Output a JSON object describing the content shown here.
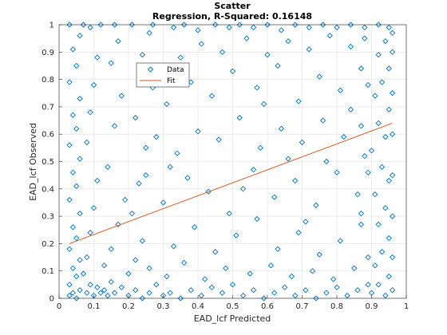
{
  "chart_data": {
    "type": "scatter",
    "title": "Scatter",
    "subtitle": "Regression, R-Squared: 0.16148",
    "xlabel": "EAD_lcf Predicted",
    "ylabel": "EAD_lcf Observed",
    "xlim": [
      0,
      1
    ],
    "ylim": [
      0,
      1
    ],
    "xticks": [
      "0",
      "0.1",
      "0.2",
      "0.3",
      "0.4",
      "0.5",
      "0.6",
      "0.7",
      "0.8",
      "0.9",
      "1"
    ],
    "yticks": [
      "0",
      "0.1",
      "0.2",
      "0.3",
      "0.4",
      "0.5",
      "0.6",
      "0.7",
      "0.8",
      "0.9",
      "1"
    ],
    "grid": true,
    "legend_position": "upper-left-inside",
    "colors": {
      "data": "#0072BD",
      "fit": "#D95319"
    },
    "series": [
      {
        "name": "Data",
        "marker": "diamond",
        "points": [
          [
            0.03,
            0.01
          ],
          [
            0.04,
            0.02
          ],
          [
            0.05,
            0.0
          ],
          [
            0.06,
            0.03
          ],
          [
            0.03,
            0.05
          ],
          [
            0.05,
            0.08
          ],
          [
            0.04,
            0.11
          ],
          [
            0.06,
            0.14
          ],
          [
            0.03,
            0.18
          ],
          [
            0.05,
            0.22
          ],
          [
            0.04,
            0.26
          ],
          [
            0.06,
            0.31
          ],
          [
            0.03,
            0.36
          ],
          [
            0.05,
            0.41
          ],
          [
            0.04,
            0.46
          ],
          [
            0.06,
            0.51
          ],
          [
            0.03,
            0.56
          ],
          [
            0.05,
            0.62
          ],
          [
            0.04,
            0.67
          ],
          [
            0.06,
            0.73
          ],
          [
            0.03,
            0.79
          ],
          [
            0.05,
            0.85
          ],
          [
            0.04,
            0.91
          ],
          [
            0.06,
            0.96
          ],
          [
            0.03,
            1.0
          ],
          [
            0.07,
            1.0
          ],
          [
            0.08,
            0.02
          ],
          [
            0.09,
            0.05
          ],
          [
            0.1,
            0.01
          ],
          [
            0.11,
            0.04
          ],
          [
            0.12,
            0.02
          ],
          [
            0.07,
            0.09
          ],
          [
            0.08,
            0.15
          ],
          [
            0.09,
            0.24
          ],
          [
            0.1,
            0.33
          ],
          [
            0.11,
            0.43
          ],
          [
            0.08,
            0.57
          ],
          [
            0.09,
            0.68
          ],
          [
            0.1,
            0.78
          ],
          [
            0.11,
            0.88
          ],
          [
            0.09,
            0.99
          ],
          [
            0.12,
            1.0
          ],
          [
            0.13,
            0.03
          ],
          [
            0.14,
            0.01
          ],
          [
            0.15,
            0.06
          ],
          [
            0.16,
            0.02
          ],
          [
            0.18,
            0.04
          ],
          [
            0.2,
            0.01
          ],
          [
            0.22,
            0.03
          ],
          [
            0.24,
            0.0
          ],
          [
            0.26,
            0.02
          ],
          [
            0.28,
            0.05
          ],
          [
            0.3,
            0.01
          ],
          [
            0.13,
            0.12
          ],
          [
            0.15,
            0.18
          ],
          [
            0.17,
            0.27
          ],
          [
            0.19,
            0.36
          ],
          [
            0.14,
            0.48
          ],
          [
            0.16,
            0.63
          ],
          [
            0.18,
            0.74
          ],
          [
            0.15,
            0.86
          ],
          [
            0.17,
            0.94
          ],
          [
            0.16,
            1.0
          ],
          [
            0.21,
            1.0
          ],
          [
            0.2,
            0.09
          ],
          [
            0.22,
            0.14
          ],
          [
            0.24,
            0.21
          ],
          [
            0.26,
            0.11
          ],
          [
            0.21,
            0.31
          ],
          [
            0.23,
            0.42
          ],
          [
            0.25,
            0.55
          ],
          [
            0.22,
            0.66
          ],
          [
            0.27,
            0.77
          ],
          [
            0.24,
            0.89
          ],
          [
            0.26,
            0.97
          ],
          [
            0.27,
            1.0
          ],
          [
            0.32,
            0.02
          ],
          [
            0.35,
            0.0
          ],
          [
            0.38,
            0.03
          ],
          [
            0.41,
            0.01
          ],
          [
            0.44,
            0.04
          ],
          [
            0.47,
            0.02
          ],
          [
            0.5,
            0.05
          ],
          [
            0.53,
            0.01
          ],
          [
            0.56,
            0.03
          ],
          [
            0.59,
            0.0
          ],
          [
            0.62,
            0.02
          ],
          [
            0.65,
            0.04
          ],
          [
            0.68,
            0.01
          ],
          [
            0.71,
            0.03
          ],
          [
            0.74,
            0.0
          ],
          [
            0.77,
            0.02
          ],
          [
            0.8,
            0.04
          ],
          [
            0.83,
            0.01
          ],
          [
            0.86,
            0.03
          ],
          [
            0.89,
            0.05
          ],
          [
            0.31,
            0.08
          ],
          [
            0.36,
            0.13
          ],
          [
            0.42,
            0.07
          ],
          [
            0.48,
            0.11
          ],
          [
            0.55,
            0.09
          ],
          [
            0.61,
            0.12
          ],
          [
            0.67,
            0.08
          ],
          [
            0.73,
            0.1
          ],
          [
            0.79,
            0.07
          ],
          [
            0.85,
            0.11
          ],
          [
            0.33,
            0.19
          ],
          [
            0.39,
            0.26
          ],
          [
            0.45,
            0.17
          ],
          [
            0.51,
            0.23
          ],
          [
            0.57,
            0.29
          ],
          [
            0.63,
            0.18
          ],
          [
            0.69,
            0.24
          ],
          [
            0.75,
            0.16
          ],
          [
            0.81,
            0.21
          ],
          [
            0.87,
            0.27
          ],
          [
            0.3,
            0.35
          ],
          [
            0.37,
            0.44
          ],
          [
            0.43,
            0.39
          ],
          [
            0.49,
            0.31
          ],
          [
            0.56,
            0.47
          ],
          [
            0.62,
            0.37
          ],
          [
            0.68,
            0.43
          ],
          [
            0.74,
            0.34
          ],
          [
            0.8,
            0.46
          ],
          [
            0.86,
            0.38
          ],
          [
            0.34,
            0.53
          ],
          [
            0.4,
            0.61
          ],
          [
            0.46,
            0.58
          ],
          [
            0.52,
            0.66
          ],
          [
            0.58,
            0.55
          ],
          [
            0.64,
            0.62
          ],
          [
            0.7,
            0.57
          ],
          [
            0.76,
            0.65
          ],
          [
            0.82,
            0.59
          ],
          [
            0.88,
            0.52
          ],
          [
            0.31,
            0.71
          ],
          [
            0.38,
            0.79
          ],
          [
            0.44,
            0.74
          ],
          [
            0.5,
            0.83
          ],
          [
            0.57,
            0.77
          ],
          [
            0.63,
            0.85
          ],
          [
            0.69,
            0.72
          ],
          [
            0.75,
            0.81
          ],
          [
            0.81,
            0.76
          ],
          [
            0.87,
            0.84
          ],
          [
            0.35,
            0.88
          ],
          [
            0.41,
            0.93
          ],
          [
            0.47,
            0.9
          ],
          [
            0.54,
            0.95
          ],
          [
            0.6,
            0.89
          ],
          [
            0.66,
            0.94
          ],
          [
            0.72,
            0.91
          ],
          [
            0.78,
            0.96
          ],
          [
            0.84,
            0.92
          ],
          [
            0.33,
            0.99
          ],
          [
            0.36,
            1.0
          ],
          [
            0.4,
            0.98
          ],
          [
            0.45,
            1.0
          ],
          [
            0.49,
            0.99
          ],
          [
            0.52,
            1.0
          ],
          [
            0.56,
            0.99
          ],
          [
            0.6,
            1.0
          ],
          [
            0.64,
            0.98
          ],
          [
            0.68,
            1.0
          ],
          [
            0.72,
            0.99
          ],
          [
            0.76,
            1.0
          ],
          [
            0.8,
            0.99
          ],
          [
            0.84,
            1.0
          ],
          [
            0.88,
            0.99
          ],
          [
            0.92,
            1.0
          ],
          [
            0.95,
            0.99
          ],
          [
            0.9,
            0.02
          ],
          [
            0.92,
            0.05
          ],
          [
            0.94,
            0.01
          ],
          [
            0.95,
            0.08
          ],
          [
            0.91,
            0.12
          ],
          [
            0.93,
            0.17
          ],
          [
            0.95,
            0.22
          ],
          [
            0.92,
            0.27
          ],
          [
            0.94,
            0.33
          ],
          [
            0.91,
            0.38
          ],
          [
            0.95,
            0.43
          ],
          [
            0.93,
            0.48
          ],
          [
            0.9,
            0.54
          ],
          [
            0.94,
            0.59
          ],
          [
            0.92,
            0.64
          ],
          [
            0.95,
            0.69
          ],
          [
            0.91,
            0.74
          ],
          [
            0.93,
            0.79
          ],
          [
            0.95,
            0.84
          ],
          [
            0.92,
            0.89
          ],
          [
            0.94,
            0.94
          ],
          [
            0.96,
            0.97
          ],
          [
            0.96,
            0.03
          ],
          [
            0.96,
            0.15
          ],
          [
            0.96,
            0.3
          ],
          [
            0.96,
            0.45
          ],
          [
            0.96,
            0.6
          ],
          [
            0.96,
            0.75
          ],
          [
            0.96,
            0.9
          ],
          [
            0.89,
            0.15
          ],
          [
            0.87,
            0.31
          ],
          [
            0.89,
            0.46
          ],
          [
            0.87,
            0.63
          ],
          [
            0.89,
            0.78
          ],
          [
            0.88,
            0.95
          ],
          [
            0.25,
            0.45
          ],
          [
            0.28,
            0.59
          ],
          [
            0.29,
            0.82
          ],
          [
            0.32,
            0.48
          ],
          [
            0.53,
            0.4
          ],
          [
            0.59,
            0.71
          ],
          [
            0.66,
            0.51
          ],
          [
            0.71,
            0.28
          ],
          [
            0.77,
            0.5
          ],
          [
            0.84,
            0.69
          ]
        ]
      },
      {
        "name": "Fit",
        "line": [
          [
            0.03,
            0.2
          ],
          [
            0.96,
            0.64
          ]
        ]
      }
    ]
  }
}
